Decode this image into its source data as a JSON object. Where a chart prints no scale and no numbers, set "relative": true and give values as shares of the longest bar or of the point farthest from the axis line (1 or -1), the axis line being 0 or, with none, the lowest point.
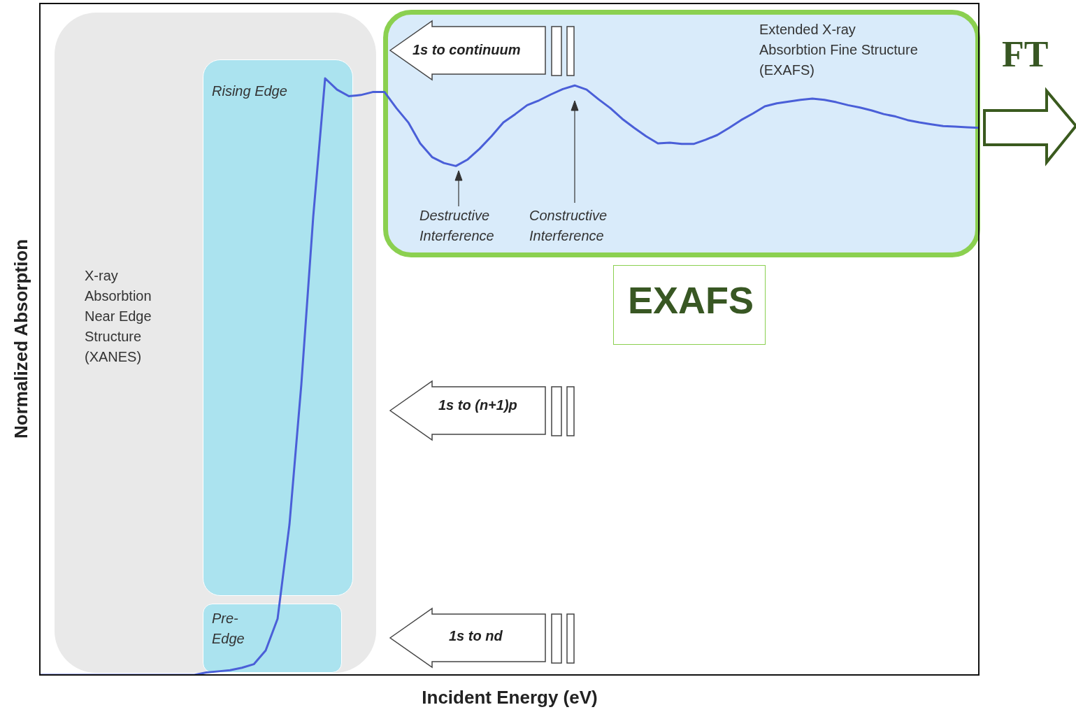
{
  "chart_data": {
    "type": "line",
    "relative": true,
    "xlabel": "Incident Energy (eV)",
    "ylabel": "Normalized Absorption",
    "legend": false,
    "marker": "none",
    "categories": [
      null,
      null,
      null,
      null,
      null,
      null,
      null,
      null,
      null,
      null,
      null,
      null,
      null,
      null,
      null,
      null,
      null,
      null,
      null,
      null,
      null,
      null,
      null,
      null,
      null,
      null,
      null,
      null,
      null,
      null,
      null,
      null,
      null,
      null,
      null,
      null,
      null,
      null,
      null,
      null,
      null,
      null,
      null,
      null,
      null,
      null,
      null,
      null,
      null,
      null,
      null,
      null,
      null,
      null,
      null,
      null,
      null,
      null,
      null,
      null,
      null,
      null,
      null,
      null,
      null,
      null,
      null,
      null,
      null,
      null,
      null,
      null,
      null,
      null,
      null,
      null,
      null,
      null,
      null,
      null
    ],
    "series": [
      {
        "color": "#4a5fd8",
        "values": [
          0,
          0,
          0,
          0,
          0,
          0,
          0,
          0,
          0,
          0,
          0,
          0,
          0,
          0,
          0.004,
          0.006,
          0.008,
          0.012,
          0.018,
          0.041,
          0.094,
          0.252,
          0.487,
          0.768,
          1.0,
          0.981,
          0.97,
          0.972,
          0.977,
          0.977,
          0.95,
          0.926,
          0.891,
          0.868,
          0.858,
          0.853,
          0.864,
          0.882,
          0.903,
          0.926,
          0.94,
          0.955,
          0.963,
          0.973,
          0.982,
          0.988,
          0.981,
          0.965,
          0.95,
          0.932,
          0.917,
          0.903,
          0.891,
          0.892,
          0.89,
          0.89,
          0.897,
          0.905,
          0.917,
          0.93,
          0.941,
          0.953,
          0.958,
          0.961,
          0.964,
          0.966,
          0.964,
          0.96,
          0.955,
          0.951,
          0.946,
          0.94,
          0.936,
          0.93,
          0.926,
          0.923,
          0.92,
          0.919,
          0.918,
          0.917
        ]
      }
    ],
    "annotations": [
      "X-ray\nAbsorbtion\nNear Edge\nStructure\n(XANES)",
      "Rising Edge",
      "Pre-\nEdge",
      "Extended X-ray\nAbsorbtion Fine Structure\n(EXAFS)",
      "1s to continuum",
      "1s to (n+1)p",
      "1s to nd",
      "Destructive\nInterference",
      "Constructive\nInterference",
      "EXAFS",
      "FT"
    ]
  }
}
